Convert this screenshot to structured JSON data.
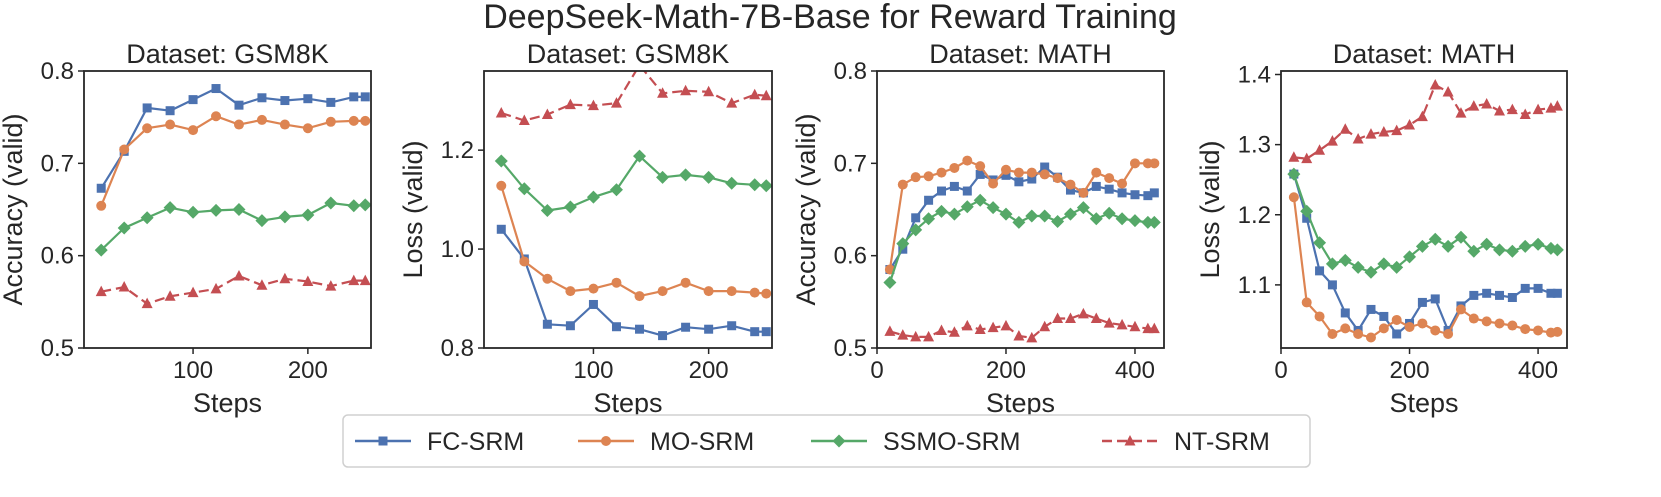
{
  "figure_title": "DeepSeek-Math-7B-Base for Reward Training",
  "colors": {
    "FC-SRM": "#4c72b0",
    "MO-SRM": "#dd8452",
    "SSMO-SRM": "#55a868",
    "NT-SRM": "#c44e52"
  },
  "legend": {
    "entries": [
      {
        "name": "FC-SRM",
        "marker": "square",
        "dashed": false
      },
      {
        "name": "MO-SRM",
        "marker": "circle",
        "dashed": false
      },
      {
        "name": "SSMO-SRM",
        "marker": "diamond",
        "dashed": false
      },
      {
        "name": "NT-SRM",
        "marker": "triangle",
        "dashed": true
      }
    ],
    "position": "bottom-center"
  },
  "chart_data": [
    {
      "type": "line",
      "title": "Dataset: GSM8K",
      "xlabel": "Steps",
      "ylabel": "Accuracy (valid)",
      "xlim": [
        5,
        255
      ],
      "ylim": [
        0.5,
        0.8
      ],
      "xticks": [
        100,
        200
      ],
      "yticks": [
        0.5,
        0.6,
        0.7,
        0.8
      ],
      "ytick_labels": [
        "0.5",
        "0.6",
        "0.7",
        "0.8"
      ],
      "series": [
        {
          "name": "FC-SRM",
          "x": [
            20,
            40,
            60,
            80,
            100,
            120,
            140,
            160,
            180,
            200,
            220,
            240,
            250
          ],
          "y": [
            0.673,
            0.713,
            0.76,
            0.757,
            0.769,
            0.781,
            0.763,
            0.771,
            0.768,
            0.77,
            0.766,
            0.772,
            0.772
          ]
        },
        {
          "name": "MO-SRM",
          "x": [
            20,
            40,
            60,
            80,
            100,
            120,
            140,
            160,
            180,
            200,
            220,
            240,
            250
          ],
          "y": [
            0.654,
            0.715,
            0.738,
            0.742,
            0.736,
            0.751,
            0.742,
            0.747,
            0.742,
            0.738,
            0.745,
            0.746,
            0.746
          ]
        },
        {
          "name": "SSMO-SRM",
          "x": [
            20,
            40,
            60,
            80,
            100,
            120,
            140,
            160,
            180,
            200,
            220,
            240,
            250
          ],
          "y": [
            0.606,
            0.63,
            0.641,
            0.652,
            0.647,
            0.649,
            0.65,
            0.638,
            0.642,
            0.644,
            0.657,
            0.654,
            0.655
          ]
        },
        {
          "name": "NT-SRM",
          "x": [
            20,
            40,
            60,
            80,
            100,
            120,
            140,
            160,
            180,
            200,
            220,
            240,
            250
          ],
          "y": [
            0.561,
            0.566,
            0.548,
            0.556,
            0.56,
            0.564,
            0.578,
            0.568,
            0.575,
            0.572,
            0.567,
            0.573,
            0.573
          ]
        }
      ]
    },
    {
      "type": "line",
      "title": "Dataset: GSM8K",
      "xlabel": "Steps",
      "ylabel": "Loss (valid)",
      "xlim": [
        5,
        255
      ],
      "ylim": [
        0.8,
        1.36
      ],
      "xticks": [
        100,
        200
      ],
      "yticks": [
        0.8,
        1.0,
        1.2
      ],
      "ytick_labels": [
        "0.8",
        "1.0",
        "1.2"
      ],
      "series": [
        {
          "name": "FC-SRM",
          "x": [
            20,
            40,
            60,
            80,
            100,
            120,
            140,
            160,
            180,
            200,
            220,
            240,
            250
          ],
          "y": [
            1.04,
            0.98,
            0.848,
            0.845,
            0.888,
            0.843,
            0.838,
            0.825,
            0.842,
            0.838,
            0.845,
            0.833,
            0.833
          ]
        },
        {
          "name": "MO-SRM",
          "x": [
            20,
            40,
            60,
            80,
            100,
            120,
            140,
            160,
            180,
            200,
            220,
            240,
            250
          ],
          "y": [
            1.128,
            0.975,
            0.94,
            0.915,
            0.92,
            0.932,
            0.905,
            0.915,
            0.932,
            0.915,
            0.915,
            0.912,
            0.91
          ]
        },
        {
          "name": "SSMO-SRM",
          "x": [
            20,
            40,
            60,
            80,
            100,
            120,
            140,
            160,
            180,
            200,
            220,
            240,
            250
          ],
          "y": [
            1.178,
            1.122,
            1.078,
            1.085,
            1.105,
            1.12,
            1.188,
            1.145,
            1.15,
            1.145,
            1.133,
            1.13,
            1.128
          ]
        },
        {
          "name": "NT-SRM",
          "x": [
            20,
            40,
            60,
            80,
            100,
            120,
            140,
            160,
            180,
            200,
            220,
            240,
            250
          ],
          "y": [
            1.275,
            1.26,
            1.272,
            1.292,
            1.29,
            1.295,
            1.372,
            1.315,
            1.32,
            1.318,
            1.295,
            1.312,
            1.31
          ]
        }
      ]
    },
    {
      "type": "line",
      "title": "Dataset: MATH",
      "xlabel": "Steps",
      "ylabel": "Accuracy (valid)",
      "xlim": [
        0,
        445
      ],
      "ylim": [
        0.5,
        0.8
      ],
      "xticks": [
        0,
        200,
        400
      ],
      "yticks": [
        0.5,
        0.6,
        0.7,
        0.8
      ],
      "ytick_labels": [
        "0.5",
        "0.6",
        "0.7",
        "0.8"
      ],
      "series": [
        {
          "name": "FC-SRM",
          "x": [
            20,
            40,
            60,
            80,
            100,
            120,
            140,
            160,
            180,
            200,
            220,
            240,
            260,
            280,
            300,
            320,
            340,
            360,
            380,
            400,
            420,
            430
          ],
          "y": [
            0.585,
            0.607,
            0.641,
            0.66,
            0.67,
            0.675,
            0.67,
            0.688,
            0.682,
            0.687,
            0.68,
            0.683,
            0.696,
            0.685,
            0.671,
            0.668,
            0.675,
            0.672,
            0.668,
            0.666,
            0.665,
            0.668
          ]
        },
        {
          "name": "MO-SRM",
          "x": [
            20,
            40,
            60,
            80,
            100,
            120,
            140,
            160,
            180,
            200,
            220,
            240,
            260,
            280,
            300,
            320,
            340,
            360,
            380,
            400,
            420,
            430
          ],
          "y": [
            0.585,
            0.677,
            0.685,
            0.686,
            0.69,
            0.695,
            0.703,
            0.697,
            0.678,
            0.693,
            0.69,
            0.69,
            0.688,
            0.684,
            0.677,
            0.668,
            0.69,
            0.684,
            0.678,
            0.7,
            0.7,
            0.7
          ]
        },
        {
          "name": "SSMO-SRM",
          "x": [
            20,
            40,
            60,
            80,
            100,
            120,
            140,
            160,
            180,
            200,
            220,
            240,
            260,
            280,
            300,
            320,
            340,
            360,
            380,
            400,
            420,
            430
          ],
          "y": [
            0.571,
            0.613,
            0.628,
            0.64,
            0.648,
            0.645,
            0.653,
            0.66,
            0.652,
            0.645,
            0.636,
            0.643,
            0.643,
            0.637,
            0.645,
            0.652,
            0.64,
            0.646,
            0.64,
            0.638,
            0.636,
            0.636
          ]
        },
        {
          "name": "NT-SRM",
          "x": [
            20,
            40,
            60,
            80,
            100,
            120,
            140,
            160,
            180,
            200,
            220,
            240,
            260,
            280,
            300,
            320,
            340,
            360,
            380,
            400,
            420,
            430
          ],
          "y": [
            0.518,
            0.514,
            0.512,
            0.512,
            0.519,
            0.517,
            0.524,
            0.52,
            0.522,
            0.524,
            0.513,
            0.511,
            0.523,
            0.532,
            0.532,
            0.537,
            0.532,
            0.527,
            0.525,
            0.523,
            0.521,
            0.521
          ]
        }
      ]
    },
    {
      "type": "line",
      "title": "Dataset: MATH",
      "xlabel": "Steps",
      "ylabel": "Loss (valid)",
      "xlim": [
        0,
        445
      ],
      "ylim": [
        1.01,
        1.405
      ],
      "xticks": [
        0,
        200,
        400
      ],
      "yticks": [
        1.1,
        1.2,
        1.3,
        1.4
      ],
      "ytick_labels": [
        "1.1",
        "1.2",
        "1.3",
        "1.4"
      ],
      "series": [
        {
          "name": "FC-SRM",
          "x": [
            20,
            40,
            60,
            80,
            100,
            120,
            140,
            160,
            180,
            200,
            220,
            240,
            260,
            280,
            300,
            320,
            340,
            360,
            380,
            400,
            420,
            430
          ],
          "y": [
            1.258,
            1.195,
            1.12,
            1.1,
            1.06,
            1.035,
            1.065,
            1.055,
            1.03,
            1.045,
            1.075,
            1.08,
            1.035,
            1.07,
            1.085,
            1.088,
            1.085,
            1.082,
            1.095,
            1.095,
            1.088,
            1.088
          ]
        },
        {
          "name": "MO-SRM",
          "x": [
            20,
            40,
            60,
            80,
            100,
            120,
            140,
            160,
            180,
            200,
            220,
            240,
            260,
            280,
            300,
            320,
            340,
            360,
            380,
            400,
            420,
            430
          ],
          "y": [
            1.225,
            1.075,
            1.055,
            1.03,
            1.038,
            1.03,
            1.025,
            1.038,
            1.05,
            1.04,
            1.045,
            1.035,
            1.03,
            1.065,
            1.052,
            1.048,
            1.045,
            1.042,
            1.037,
            1.035,
            1.032,
            1.033
          ]
        },
        {
          "name": "SSMO-SRM",
          "x": [
            20,
            40,
            60,
            80,
            100,
            120,
            140,
            160,
            180,
            200,
            220,
            240,
            260,
            280,
            300,
            320,
            340,
            360,
            380,
            400,
            420,
            430
          ],
          "y": [
            1.258,
            1.205,
            1.16,
            1.13,
            1.135,
            1.125,
            1.118,
            1.13,
            1.125,
            1.14,
            1.155,
            1.165,
            1.155,
            1.168,
            1.148,
            1.158,
            1.15,
            1.148,
            1.155,
            1.158,
            1.152,
            1.15
          ]
        },
        {
          "name": "NT-SRM",
          "x": [
            20,
            40,
            60,
            80,
            100,
            120,
            140,
            160,
            180,
            200,
            220,
            240,
            260,
            280,
            300,
            320,
            340,
            360,
            380,
            400,
            420,
            430
          ],
          "y": [
            1.282,
            1.28,
            1.292,
            1.305,
            1.322,
            1.308,
            1.315,
            1.318,
            1.32,
            1.328,
            1.34,
            1.385,
            1.375,
            1.345,
            1.355,
            1.358,
            1.348,
            1.35,
            1.343,
            1.35,
            1.352,
            1.355
          ]
        }
      ]
    }
  ]
}
